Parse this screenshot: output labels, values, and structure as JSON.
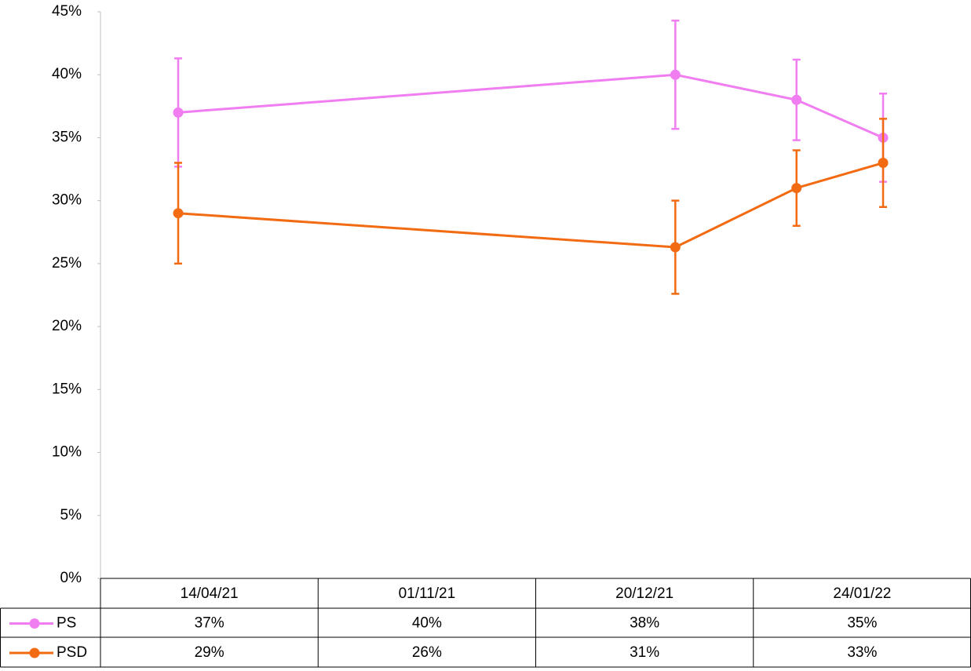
{
  "chart_data": {
    "type": "line",
    "x": [
      "14/04/21",
      "01/11/21",
      "20/12/21",
      "24/01/22"
    ],
    "series": [
      {
        "name": "PS",
        "color": "#f07ef0",
        "values": [
          37,
          40,
          38,
          35
        ],
        "errors": [
          4.3,
          4.3,
          3.2,
          3.5
        ],
        "value_labels": [
          "37%",
          "40%",
          "38%",
          "35%"
        ]
      },
      {
        "name": "PSD",
        "color": "#f26b12",
        "values": [
          29,
          26.3,
          31,
          33
        ],
        "errors": [
          4,
          3.7,
          3,
          3.5
        ],
        "value_labels": [
          "29%",
          "26%",
          "31%",
          "33%"
        ]
      }
    ],
    "ylim": [
      0,
      45
    ],
    "yticks": [
      {
        "value": 0,
        "label": "0%"
      },
      {
        "value": 5,
        "label": "5%"
      },
      {
        "value": 10,
        "label": "10%"
      },
      {
        "value": 15,
        "label": "15%"
      },
      {
        "value": 20,
        "label": "20%"
      },
      {
        "value": 25,
        "label": "25%"
      },
      {
        "value": 30,
        "label": "30%"
      },
      {
        "value": 35,
        "label": "35%"
      },
      {
        "value": 40,
        "label": "40%"
      },
      {
        "value": 45,
        "label": "45%"
      }
    ],
    "grid": false
  }
}
